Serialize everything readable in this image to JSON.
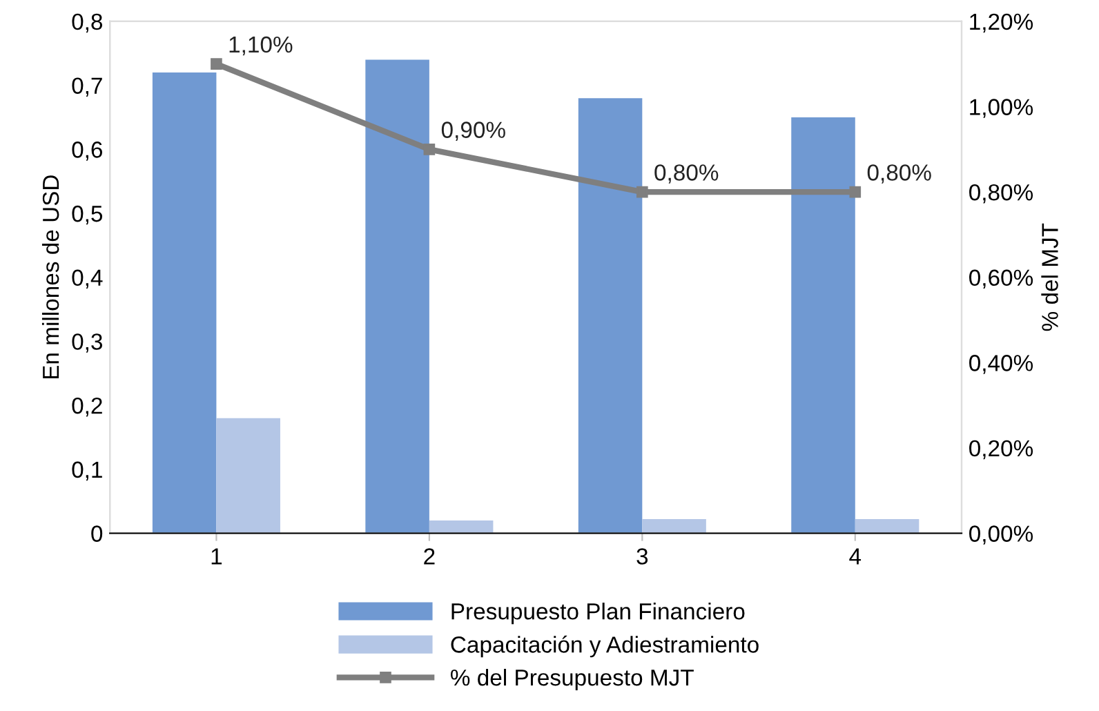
{
  "chart_data": {
    "type": "bar",
    "categories": [
      "1",
      "2",
      "3",
      "4"
    ],
    "ylabel": "En millones de USD",
    "y2label": "% del MJT",
    "series": [
      {
        "name": "Presupuesto Plan Financiero",
        "color": "#7099d2",
        "values": [
          0.72,
          0.74,
          0.68,
          0.65
        ]
      },
      {
        "name": "Capacitación y Adiestramiento",
        "color": "#b4c6e6",
        "values": [
          0.18,
          0.02,
          0.022,
          0.022
        ]
      },
      {
        "name": "% del Presupuesto MJT",
        "type": "line",
        "axis": "y2",
        "color": "#7f7f7f",
        "marker": "square",
        "values": [
          1.1,
          0.9,
          0.8,
          0.8
        ],
        "value_labels": [
          "1,10%",
          "0,90%",
          "0,80%",
          "0,80%"
        ]
      }
    ],
    "ylim": [
      0,
      0.8
    ],
    "yticks": [
      0,
      {
        "value": 0.1,
        "label": "0,1"
      },
      {
        "value": 0.2,
        "label": "0,2"
      },
      {
        "value": 0.3,
        "label": "0,3"
      },
      {
        "value": 0.4,
        "label": "0,4"
      },
      {
        "value": 0.5,
        "label": "0,5"
      },
      {
        "value": 0.6,
        "label": "0,6"
      },
      {
        "value": 0.7,
        "label": "0,7"
      },
      {
        "value": 0.8,
        "label": "0,8"
      }
    ],
    "y2lim": [
      0,
      1.2
    ],
    "y2ticks": [
      {
        "value": 0,
        "label": "0,00%"
      },
      {
        "value": 0.2,
        "label": "0,20%"
      },
      {
        "value": 0.4,
        "label": "0,40%"
      },
      {
        "value": 0.6,
        "label": "0,60%"
      },
      {
        "value": 0.8,
        "label": "0,80%"
      },
      {
        "value": 1.0,
        "label": "1,00%"
      },
      {
        "value": 1.2,
        "label": "1,20%"
      }
    ],
    "legend": "bottom",
    "grid": false
  }
}
